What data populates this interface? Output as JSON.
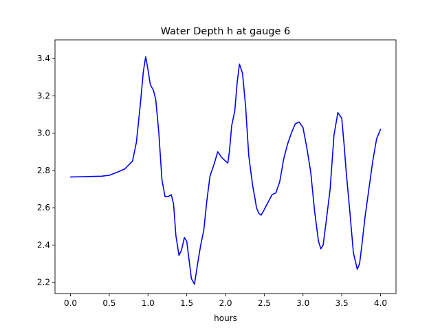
{
  "chart_data": {
    "type": "line",
    "title": "Water Depth h at gauge 6",
    "xlabel": "hours",
    "ylabel": "",
    "xlim": [
      -0.2,
      4.2
    ],
    "ylim": [
      2.14,
      3.5
    ],
    "xticks": [
      0.0,
      0.5,
      1.0,
      1.5,
      2.0,
      2.5,
      3.0,
      3.5,
      4.0
    ],
    "xtick_labels": [
      "0.0",
      "0.5",
      "1.0",
      "1.5",
      "2.0",
      "2.5",
      "3.0",
      "3.5",
      "4.0"
    ],
    "yticks": [
      2.2,
      2.4,
      2.6,
      2.8,
      3.0,
      3.2,
      3.4
    ],
    "ytick_labels": [
      "2.2",
      "2.4",
      "2.6",
      "2.8",
      "3.0",
      "3.2",
      "3.4"
    ],
    "grid": false,
    "legend": "none",
    "series": [
      {
        "color": "#0000ff",
        "x": [
          0.0,
          0.2,
          0.4,
          0.5,
          0.6,
          0.7,
          0.8,
          0.85,
          0.9,
          0.94,
          0.97,
          1.0,
          1.03,
          1.07,
          1.1,
          1.14,
          1.18,
          1.22,
          1.26,
          1.3,
          1.33,
          1.36,
          1.4,
          1.43,
          1.47,
          1.5,
          1.53,
          1.56,
          1.6,
          1.64,
          1.68,
          1.72,
          1.76,
          1.8,
          1.85,
          1.9,
          1.95,
          2.0,
          2.03,
          2.05,
          2.08,
          2.12,
          2.15,
          2.18,
          2.22,
          2.26,
          2.3,
          2.35,
          2.38,
          2.4,
          2.43,
          2.46,
          2.5,
          2.55,
          2.6,
          2.65,
          2.7,
          2.75,
          2.8,
          2.85,
          2.9,
          2.95,
          3.0,
          3.05,
          3.1,
          3.15,
          3.2,
          3.23,
          3.26,
          3.3,
          3.35,
          3.4,
          3.45,
          3.5,
          3.53,
          3.56,
          3.6,
          3.65,
          3.7,
          3.73,
          3.76,
          3.8,
          3.85,
          3.9,
          3.95,
          4.0
        ],
        "y": [
          2.765,
          2.767,
          2.769,
          2.774,
          2.79,
          2.808,
          2.85,
          2.95,
          3.15,
          3.33,
          3.41,
          3.34,
          3.26,
          3.23,
          3.18,
          3.0,
          2.75,
          2.66,
          2.66,
          2.67,
          2.62,
          2.45,
          2.345,
          2.37,
          2.44,
          2.42,
          2.32,
          2.22,
          2.19,
          2.3,
          2.4,
          2.48,
          2.64,
          2.77,
          2.83,
          2.9,
          2.87,
          2.85,
          2.84,
          2.9,
          3.04,
          3.12,
          3.27,
          3.37,
          3.32,
          3.14,
          2.88,
          2.72,
          2.65,
          2.6,
          2.57,
          2.56,
          2.59,
          2.63,
          2.67,
          2.68,
          2.74,
          2.86,
          2.94,
          3.0,
          3.05,
          3.06,
          3.03,
          2.92,
          2.79,
          2.58,
          2.42,
          2.38,
          2.4,
          2.53,
          2.7,
          2.99,
          3.11,
          3.08,
          2.94,
          2.78,
          2.6,
          2.36,
          2.27,
          2.3,
          2.4,
          2.55,
          2.7,
          2.85,
          2.97,
          3.02
        ]
      }
    ]
  }
}
